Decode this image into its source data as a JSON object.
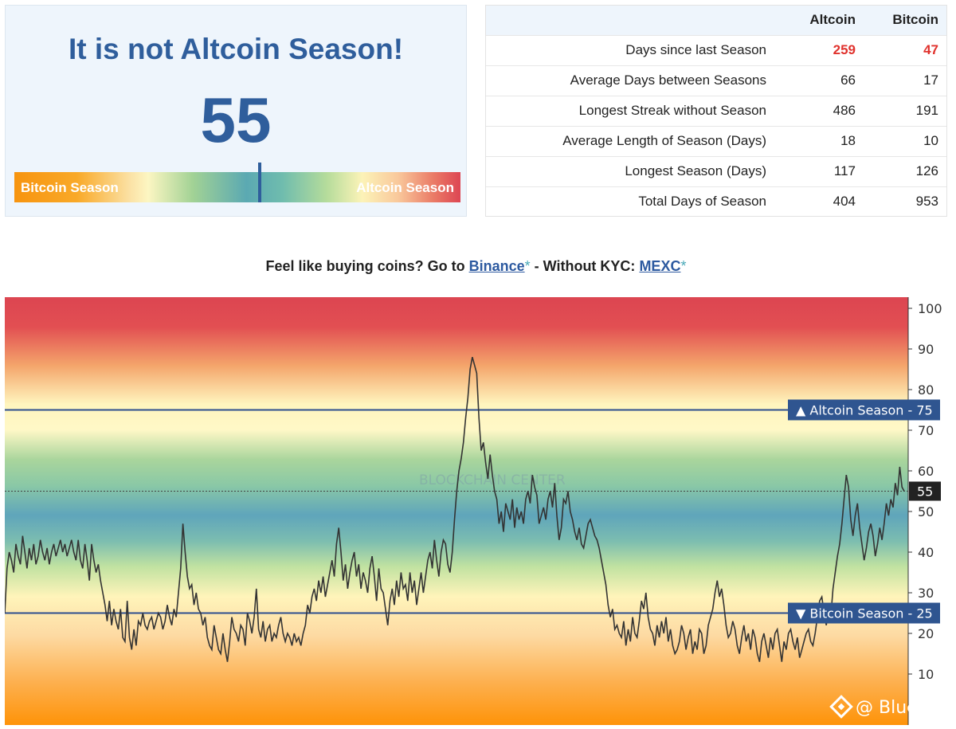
{
  "season_panel": {
    "title": "It is not Altcoin Season!",
    "value": "55",
    "gauge_level": 55,
    "left_label": "Bitcoin Season",
    "right_label": "Altcoin Season"
  },
  "stats": {
    "headers": [
      "",
      "Altcoin",
      "Bitcoin"
    ],
    "rows": [
      {
        "label": "Days since last Season",
        "altcoin": "259",
        "bitcoin": "47",
        "highlight": true
      },
      {
        "label": "Average Days between Seasons",
        "altcoin": "66",
        "bitcoin": "17"
      },
      {
        "label": "Longest Streak without Season",
        "altcoin": "486",
        "bitcoin": "191"
      },
      {
        "label": "Average Length of Season (Days)",
        "altcoin": "18",
        "bitcoin": "10"
      },
      {
        "label": "Longest Season (Days)",
        "altcoin": "117",
        "bitcoin": "126"
      },
      {
        "label": "Total Days of Season",
        "altcoin": "404",
        "bitcoin": "953"
      }
    ]
  },
  "promo": {
    "prefix": "Feel like buying coins? Go to ",
    "link1": "Binance",
    "middle": " - Without KYC: ",
    "link2": "MEXC",
    "star": "*"
  },
  "chart_data": {
    "type": "line",
    "ylim": [
      0,
      100
    ],
    "y_ticks": [
      10,
      20,
      30,
      40,
      50,
      60,
      70,
      80,
      90,
      100
    ],
    "thresholds": [
      {
        "label": "▲ Altcoin Season - 75",
        "value": 75
      },
      {
        "label": "▼ Bitcoin Season - 25",
        "value": 25
      }
    ],
    "current_label": "55",
    "current_value": 55,
    "watermark": "BLOCKCHAIN CENTER",
    "credit": "@ Bluechip",
    "colors": {
      "red": "#dc4551",
      "yellow": "#fff7c0",
      "green": "#a5d39a",
      "blue": "#5fa5bb",
      "orange": "#fe9308",
      "line": "#333333",
      "threshold": "#2f4f8f"
    },
    "series": [
      {
        "values": [
          25,
          36,
          40,
          38,
          35,
          42,
          39,
          37,
          44,
          40,
          36,
          41,
          38,
          42,
          37,
          39,
          43,
          40,
          38,
          41,
          37,
          40,
          42,
          39,
          41,
          43,
          40,
          42,
          39,
          41,
          43,
          40,
          38,
          43,
          38,
          36,
          42,
          38,
          33,
          42,
          38,
          35,
          37,
          33,
          30,
          27,
          23,
          28,
          22,
          26,
          23,
          21,
          26,
          19,
          18,
          28,
          19,
          16,
          21,
          17,
          23,
          22,
          25,
          22,
          21,
          23,
          24,
          21,
          23,
          25,
          24,
          21,
          23,
          27,
          24,
          22,
          26,
          24,
          30,
          36,
          47,
          40,
          34,
          31,
          32,
          27,
          30,
          26,
          25,
          22,
          24,
          19,
          17,
          16,
          22,
          19,
          16,
          15,
          20,
          16,
          13,
          18,
          24,
          21,
          20,
          18,
          22,
          21,
          17,
          25,
          23,
          20,
          24,
          31,
          21,
          19,
          23,
          18,
          21,
          22,
          18,
          20,
          19,
          22,
          24,
          20,
          18,
          20,
          19,
          17,
          20,
          18,
          19,
          17,
          20,
          22,
          27,
          25,
          29,
          31,
          28,
          33,
          30,
          34,
          29,
          32,
          35,
          38,
          34,
          42,
          46,
          40,
          33,
          37,
          31,
          35,
          38,
          40,
          34,
          37,
          31,
          35,
          33,
          30,
          36,
          39,
          34,
          28,
          36,
          31,
          30,
          26,
          22,
          28,
          31,
          27,
          33,
          29,
          35,
          31,
          32,
          28,
          35,
          30,
          33,
          27,
          31,
          35,
          30,
          34,
          38,
          40,
          36,
          43,
          38,
          34,
          40,
          43,
          42,
          37,
          35,
          40,
          48,
          55,
          60,
          63,
          67,
          73,
          78,
          85,
          88,
          86,
          84,
          73,
          65,
          67,
          62,
          58,
          64,
          59,
          55,
          53,
          47,
          50,
          45,
          52,
          50,
          48,
          53,
          46,
          51,
          48,
          50,
          47,
          53,
          55,
          52,
          59,
          56,
          54,
          47,
          49,
          51,
          48,
          53,
          55,
          51,
          57,
          49,
          43,
          46,
          53,
          52,
          55,
          50,
          48,
          45,
          43,
          46,
          42,
          41,
          44,
          47,
          48,
          46,
          44,
          43,
          41,
          38,
          35,
          32,
          27,
          24,
          26,
          21,
          22,
          20,
          19,
          23,
          17,
          21,
          18,
          24,
          20,
          19,
          23,
          28,
          26,
          30,
          24,
          21,
          20,
          17,
          22,
          19,
          23,
          20,
          24,
          18,
          21,
          17,
          15,
          16,
          18,
          22,
          20,
          16,
          19,
          21,
          15,
          18,
          16,
          21,
          20,
          15,
          17,
          22,
          24,
          26,
          30,
          33,
          29,
          31,
          27,
          22,
          19,
          20,
          23,
          21,
          17,
          15,
          19,
          22,
          18,
          20,
          16,
          21,
          19,
          15,
          13,
          18,
          20,
          17,
          14,
          19,
          16,
          20,
          21,
          17,
          13,
          18,
          16,
          20,
          21,
          18,
          16,
          19,
          14,
          16,
          18,
          20,
          21,
          18,
          17,
          20,
          24,
          28,
          29,
          25,
          22,
          26,
          24,
          31,
          35,
          39,
          42,
          47,
          53,
          59,
          56,
          48,
          44,
          49,
          52,
          46,
          42,
          38,
          41,
          45,
          47,
          44,
          39,
          42,
          46,
          43,
          47,
          52,
          49,
          53,
          51,
          57,
          54,
          61,
          56,
          55
        ]
      }
    ]
  }
}
